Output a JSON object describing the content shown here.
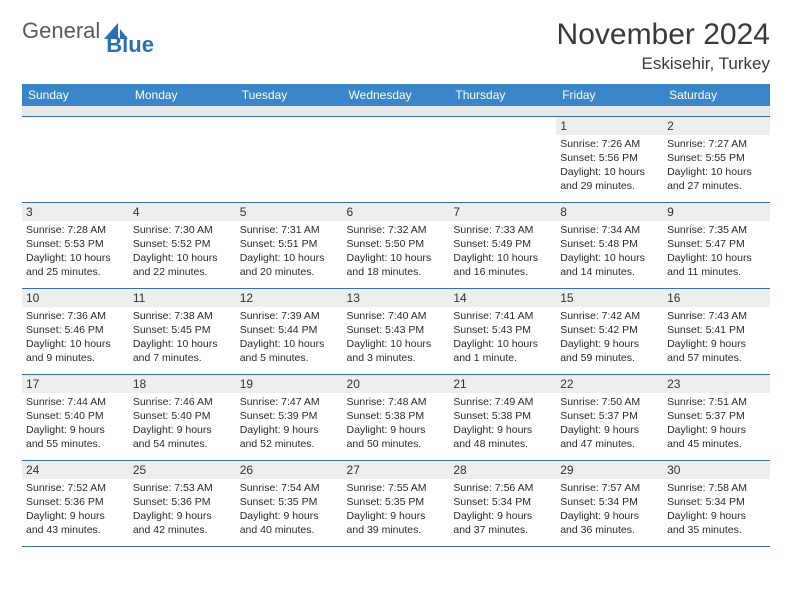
{
  "logo": {
    "text1": "General",
    "text2": "Blue"
  },
  "title": "November 2024",
  "location": "Eskisehir, Turkey",
  "dow": [
    "Sunday",
    "Monday",
    "Tuesday",
    "Wednesday",
    "Thursday",
    "Friday",
    "Saturday"
  ],
  "colors": {
    "header_bg": "#3a86c8",
    "day_num_bg": "#ededed",
    "row_border": "#3a6fa5",
    "logo_blue": "#2a6fb5",
    "text_gray": "#3a3a3a"
  },
  "weeks": [
    [
      null,
      null,
      null,
      null,
      null,
      {
        "num": "1",
        "sunrise": "Sunrise: 7:26 AM",
        "sunset": "Sunset: 5:56 PM",
        "daylight": "Daylight: 10 hours and 29 minutes."
      },
      {
        "num": "2",
        "sunrise": "Sunrise: 7:27 AM",
        "sunset": "Sunset: 5:55 PM",
        "daylight": "Daylight: 10 hours and 27 minutes."
      }
    ],
    [
      {
        "num": "3",
        "sunrise": "Sunrise: 7:28 AM",
        "sunset": "Sunset: 5:53 PM",
        "daylight": "Daylight: 10 hours and 25 minutes."
      },
      {
        "num": "4",
        "sunrise": "Sunrise: 7:30 AM",
        "sunset": "Sunset: 5:52 PM",
        "daylight": "Daylight: 10 hours and 22 minutes."
      },
      {
        "num": "5",
        "sunrise": "Sunrise: 7:31 AM",
        "sunset": "Sunset: 5:51 PM",
        "daylight": "Daylight: 10 hours and 20 minutes."
      },
      {
        "num": "6",
        "sunrise": "Sunrise: 7:32 AM",
        "sunset": "Sunset: 5:50 PM",
        "daylight": "Daylight: 10 hours and 18 minutes."
      },
      {
        "num": "7",
        "sunrise": "Sunrise: 7:33 AM",
        "sunset": "Sunset: 5:49 PM",
        "daylight": "Daylight: 10 hours and 16 minutes."
      },
      {
        "num": "8",
        "sunrise": "Sunrise: 7:34 AM",
        "sunset": "Sunset: 5:48 PM",
        "daylight": "Daylight: 10 hours and 14 minutes."
      },
      {
        "num": "9",
        "sunrise": "Sunrise: 7:35 AM",
        "sunset": "Sunset: 5:47 PM",
        "daylight": "Daylight: 10 hours and 11 minutes."
      }
    ],
    [
      {
        "num": "10",
        "sunrise": "Sunrise: 7:36 AM",
        "sunset": "Sunset: 5:46 PM",
        "daylight": "Daylight: 10 hours and 9 minutes."
      },
      {
        "num": "11",
        "sunrise": "Sunrise: 7:38 AM",
        "sunset": "Sunset: 5:45 PM",
        "daylight": "Daylight: 10 hours and 7 minutes."
      },
      {
        "num": "12",
        "sunrise": "Sunrise: 7:39 AM",
        "sunset": "Sunset: 5:44 PM",
        "daylight": "Daylight: 10 hours and 5 minutes."
      },
      {
        "num": "13",
        "sunrise": "Sunrise: 7:40 AM",
        "sunset": "Sunset: 5:43 PM",
        "daylight": "Daylight: 10 hours and 3 minutes."
      },
      {
        "num": "14",
        "sunrise": "Sunrise: 7:41 AM",
        "sunset": "Sunset: 5:43 PM",
        "daylight": "Daylight: 10 hours and 1 minute."
      },
      {
        "num": "15",
        "sunrise": "Sunrise: 7:42 AM",
        "sunset": "Sunset: 5:42 PM",
        "daylight": "Daylight: 9 hours and 59 minutes."
      },
      {
        "num": "16",
        "sunrise": "Sunrise: 7:43 AM",
        "sunset": "Sunset: 5:41 PM",
        "daylight": "Daylight: 9 hours and 57 minutes."
      }
    ],
    [
      {
        "num": "17",
        "sunrise": "Sunrise: 7:44 AM",
        "sunset": "Sunset: 5:40 PM",
        "daylight": "Daylight: 9 hours and 55 minutes."
      },
      {
        "num": "18",
        "sunrise": "Sunrise: 7:46 AM",
        "sunset": "Sunset: 5:40 PM",
        "daylight": "Daylight: 9 hours and 54 minutes."
      },
      {
        "num": "19",
        "sunrise": "Sunrise: 7:47 AM",
        "sunset": "Sunset: 5:39 PM",
        "daylight": "Daylight: 9 hours and 52 minutes."
      },
      {
        "num": "20",
        "sunrise": "Sunrise: 7:48 AM",
        "sunset": "Sunset: 5:38 PM",
        "daylight": "Daylight: 9 hours and 50 minutes."
      },
      {
        "num": "21",
        "sunrise": "Sunrise: 7:49 AM",
        "sunset": "Sunset: 5:38 PM",
        "daylight": "Daylight: 9 hours and 48 minutes."
      },
      {
        "num": "22",
        "sunrise": "Sunrise: 7:50 AM",
        "sunset": "Sunset: 5:37 PM",
        "daylight": "Daylight: 9 hours and 47 minutes."
      },
      {
        "num": "23",
        "sunrise": "Sunrise: 7:51 AM",
        "sunset": "Sunset: 5:37 PM",
        "daylight": "Daylight: 9 hours and 45 minutes."
      }
    ],
    [
      {
        "num": "24",
        "sunrise": "Sunrise: 7:52 AM",
        "sunset": "Sunset: 5:36 PM",
        "daylight": "Daylight: 9 hours and 43 minutes."
      },
      {
        "num": "25",
        "sunrise": "Sunrise: 7:53 AM",
        "sunset": "Sunset: 5:36 PM",
        "daylight": "Daylight: 9 hours and 42 minutes."
      },
      {
        "num": "26",
        "sunrise": "Sunrise: 7:54 AM",
        "sunset": "Sunset: 5:35 PM",
        "daylight": "Daylight: 9 hours and 40 minutes."
      },
      {
        "num": "27",
        "sunrise": "Sunrise: 7:55 AM",
        "sunset": "Sunset: 5:35 PM",
        "daylight": "Daylight: 9 hours and 39 minutes."
      },
      {
        "num": "28",
        "sunrise": "Sunrise: 7:56 AM",
        "sunset": "Sunset: 5:34 PM",
        "daylight": "Daylight: 9 hours and 37 minutes."
      },
      {
        "num": "29",
        "sunrise": "Sunrise: 7:57 AM",
        "sunset": "Sunset: 5:34 PM",
        "daylight": "Daylight: 9 hours and 36 minutes."
      },
      {
        "num": "30",
        "sunrise": "Sunrise: 7:58 AM",
        "sunset": "Sunset: 5:34 PM",
        "daylight": "Daylight: 9 hours and 35 minutes."
      }
    ]
  ]
}
